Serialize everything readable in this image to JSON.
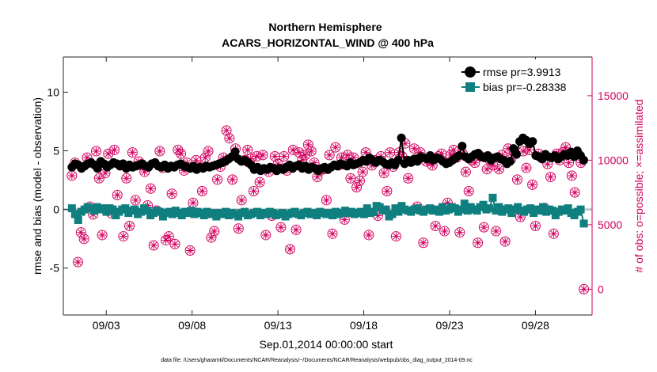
{
  "chart_data": {
    "type": "line",
    "title": "Northern Hemisphere",
    "subtitle": "ACARS_HORIZONTAL_WIND @ 400 hPa",
    "xlabel": "Sep.01,2014 00:00:00 start",
    "ylabel_left": "rmse and bias (model - observation)",
    "ylabel_right": "# of obs: o=possible; ×=assimilated",
    "footnote": "data file: /Users/gharamti/Documents/NCAR/Reanalysis/~/Documents/NCAR/Reanalysis/webpub/obs_diag_output_2014-09.nc",
    "x_ticks": [
      {
        "day": 3,
        "label": "09/03"
      },
      {
        "day": 8,
        "label": "09/08"
      },
      {
        "day": 13,
        "label": "09/13"
      },
      {
        "day": 18,
        "label": "09/18"
      },
      {
        "day": 23,
        "label": "09/23"
      },
      {
        "day": 28,
        "label": "09/28"
      }
    ],
    "xlim": [
      0.5,
      31.3
    ],
    "ylim_left": [
      -9,
      13
    ],
    "y_ticks_left": [
      {
        "value": 10,
        "label": "10"
      },
      {
        "value": 5,
        "label": "5"
      },
      {
        "value": 0,
        "label": "0"
      },
      {
        "value": -5,
        "label": "-5"
      }
    ],
    "ylim_right": [
      -2000,
      18000
    ],
    "y_ticks_right": [
      {
        "value": 15000,
        "label": "15000"
      },
      {
        "value": 10000,
        "label": "10000"
      },
      {
        "value": 5000,
        "label": "5000"
      },
      {
        "value": 0,
        "label": "0"
      }
    ],
    "series": [
      {
        "name": "rmse",
        "legend": "rmse pr=3.9913",
        "color": "#000000",
        "marker": "circle",
        "values": [
          3.6,
          3.9,
          3.8,
          3.5,
          3.7,
          3.9,
          4.0,
          3.8,
          3.5,
          4.1,
          3.9,
          3.6,
          3.8,
          4.0,
          3.9,
          3.7,
          3.9,
          3.5,
          3.8,
          3.6,
          3.7,
          3.8,
          3.9,
          3.7,
          3.6,
          3.9,
          4.0,
          3.7,
          3.6,
          3.8,
          3.5,
          3.7,
          3.6,
          3.8,
          3.9,
          3.7,
          3.6,
          3.5,
          3.7,
          3.4,
          3.6,
          3.5,
          3.7,
          3.6,
          3.7,
          3.8,
          3.9,
          4.0,
          4.1,
          4.3,
          4.5,
          4.9,
          4.3,
          4.1,
          4.2,
          4.0,
          3.8,
          3.4,
          3.6,
          3.3,
          3.5,
          3.4,
          3.6,
          3.5,
          3.3,
          3.5,
          3.4,
          3.6,
          3.8,
          3.5,
          3.7,
          3.8,
          3.5,
          3.7,
          3.4,
          3.6,
          3.5,
          3.3,
          3.5,
          3.6,
          3.4,
          3.6,
          3.8,
          3.7,
          3.9,
          3.8,
          3.7,
          4.0,
          3.8,
          3.9,
          4.0,
          4.2,
          4.1,
          4.4,
          4.2,
          4.0,
          4.2,
          4.1,
          3.9,
          3.8,
          4.0,
          3.8,
          4.2,
          6.1,
          3.9,
          4.2,
          4.0,
          4.3,
          4.1,
          4.5,
          4.4,
          4.3,
          4.6,
          4.2,
          4.4,
          4.3,
          4.1,
          3.9,
          4.0,
          4.2,
          4.4,
          4.6,
          5.4,
          4.5,
          4.3,
          4.5,
          4.7,
          4.8,
          4.5,
          4.4,
          4.6,
          4.2,
          4.4,
          4.5,
          4.3,
          4.2,
          3.9,
          4.1,
          5.2,
          4.7,
          5.8,
          6.1,
          5.9,
          5.6,
          5.8,
          4.6,
          4.5,
          4.3,
          4.7,
          4.5,
          4.4,
          4.6,
          4.3,
          4.5,
          4.7,
          4.6,
          4.9,
          4.5,
          5.0,
          4.6,
          4.2
        ]
      },
      {
        "name": "bias",
        "legend": "bias pr=-0.28338",
        "color": "#0f7f7f",
        "marker": "square",
        "values": [
          0.1,
          -0.4,
          -0.9,
          -0.2,
          0.0,
          0.2,
          0.1,
          -0.1,
          0.2,
          0.0,
          0.1,
          -0.2,
          0.1,
          0.0,
          -0.5,
          -0.2,
          0.0,
          0.1,
          -0.3,
          -0.1,
          0.0,
          -0.4,
          -0.2,
          0.1,
          -0.1,
          -0.5,
          -0.3,
          -0.1,
          -0.2,
          -0.6,
          -0.3,
          -0.2,
          -0.4,
          -0.1,
          -0.3,
          -0.5,
          -0.2,
          -0.3,
          -0.1,
          -0.4,
          -0.2,
          -0.3,
          -0.5,
          -0.2,
          -0.4,
          -0.3,
          -0.6,
          -0.3,
          -0.4,
          -0.2,
          -0.5,
          -0.3,
          -0.4,
          -0.6,
          -0.3,
          -0.2,
          -0.5,
          -0.4,
          -0.3,
          -0.2,
          -0.5,
          -0.3,
          -0.4,
          -0.2,
          -0.3,
          -0.5,
          -0.4,
          -0.3,
          -0.6,
          -0.4,
          -0.3,
          -0.2,
          -0.4,
          -0.5,
          -0.3,
          -0.2,
          -0.4,
          -0.3,
          -0.5,
          -0.2,
          -0.3,
          -0.4,
          -0.3,
          -0.5,
          -0.2,
          -0.4,
          -0.3,
          -0.1,
          -0.3,
          -0.2,
          -0.4,
          -0.3,
          -0.2,
          -0.4,
          0.1,
          -0.3,
          -0.2,
          0.3,
          0.2,
          -0.1,
          0.0,
          -0.6,
          -0.4,
          0.1,
          -0.2,
          0.3,
          0.0,
          -0.1,
          -0.2,
          0.0,
          0.1,
          -0.1,
          -0.2,
          0.0,
          0.1,
          -0.1,
          0.0,
          -0.2,
          0.2,
          -0.1,
          0.0,
          0.2,
          0.1,
          -0.2,
          0.0,
          0.5,
          -0.1,
          0.2,
          0.0,
          -0.1,
          0.2,
          0.4,
          0.0,
          0.1,
          1.0,
          -0.1,
          0.2,
          -0.2,
          0.0,
          0.1,
          -0.3,
          0.0,
          0.2,
          -0.1,
          -0.2,
          0.0,
          0.1,
          -0.3,
          0.0,
          -0.1,
          0.2,
          -0.2,
          0.0,
          -0.1,
          -0.5,
          -0.2,
          0.0,
          -0.1,
          0.1,
          -0.3,
          -0.5,
          -0.2,
          0.0,
          -1.2
        ]
      }
    ],
    "obs_possible": [
      8800,
      9800,
      2100,
      4400,
      3900,
      10200,
      6400,
      5800,
      10700,
      8600,
      4200,
      9000,
      10500,
      5900,
      10800,
      7300,
      9600,
      4100,
      8600,
      4900,
      10600,
      6900,
      9900,
      9600,
      9100,
      6500,
      7800,
      3400,
      6100,
      10700,
      9400,
      3800,
      4100,
      7400,
      3500,
      10800,
      10500,
      9200,
      9800,
      3000,
      6700,
      10000,
      9500,
      7600,
      10200,
      10700,
      4000,
      4500,
      8500,
      9500,
      10200,
      12300,
      11700,
      8500,
      10900,
      4700,
      6900,
      10000,
      10800,
      10100,
      7600,
      10300,
      8300,
      10400,
      4200,
      9100,
      5700,
      10300,
      9700,
      4800,
      10300,
      9200,
      3100,
      10800,
      4600,
      10600,
      10000,
      10400,
      11200,
      10700,
      9800,
      8700,
      9200,
      9300,
      6900,
      10400,
      4300,
      11000,
      9600,
      10200,
      5400,
      10400,
      8600,
      10200,
      7900,
      8400,
      9100,
      10600,
      4200,
      9600,
      10000,
      5700,
      10300,
      9000,
      7600,
      10600,
      9500,
      4100,
      10600,
      10300,
      11300,
      8600,
      9900,
      10900,
      6400,
      10600,
      3600,
      9900,
      10000,
      9600,
      4900,
      10300,
      10500,
      4500,
      6700,
      10400,
      10800,
      10200,
      4400,
      10500,
      9100,
      7600,
      10000,
      9800,
      3600,
      10300,
      4800,
      9300,
      10000,
      9600,
      4500,
      9300,
      10400,
      3700,
      10900,
      10100,
      10600,
      8500,
      5600,
      10700,
      9400,
      10800,
      8100,
      4900,
      10500,
      10200,
      6300,
      9700,
      8700,
      4300,
      10500,
      10000,
      10600,
      11000,
      9800,
      8800,
      7500,
      10500,
      9800,
      0
    ]
  }
}
